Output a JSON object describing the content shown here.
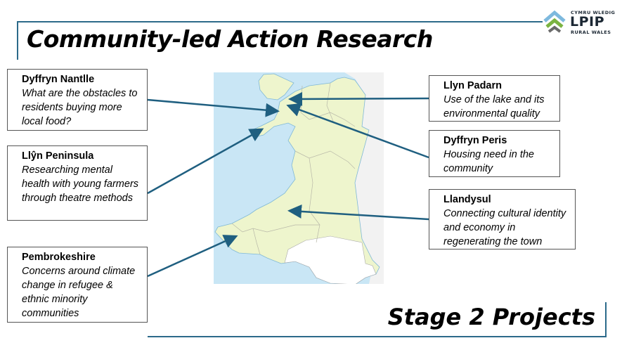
{
  "slide": {
    "title": "Community-led Action Research",
    "subtitle": "Stage 2 Projects",
    "accent_color": "#2c6a8a",
    "logo": {
      "line1": "CYMRU WLEDIG",
      "name": "LPIP",
      "line3": "RURAL WALES",
      "colors": [
        "#7db9de",
        "#7bb342",
        "#6b6b6b"
      ]
    },
    "map": {
      "sea_color": "#c9e6f5",
      "wales_color": "#eef5cd",
      "south_color": "#ffffff",
      "england_color": "#f2f2f2"
    },
    "projects": [
      {
        "name": "Dyffryn Nantlle",
        "description": "What are the obstacles to residents buying more local food?"
      },
      {
        "name": "Llŷn Peninsula",
        "description": "Researching mental health with young farmers through theatre methods"
      },
      {
        "name": "Pembrokeshire",
        "description": "Concerns around climate change in refugee & ethnic minority communities"
      },
      {
        "name": "Llyn Padarn",
        "description": "Use of the lake and its environmental quality"
      },
      {
        "name": "Dyffryn Peris",
        "description": "Housing need in the community"
      },
      {
        "name": "Llandysul",
        "description": "Connecting cultural identity and economy in regenerating the town"
      }
    ]
  }
}
